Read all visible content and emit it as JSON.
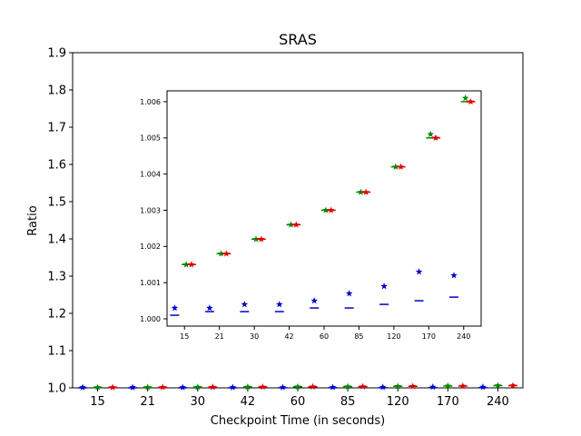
{
  "chart_data": [
    {
      "type": "box",
      "role": "main",
      "title": "SRAS",
      "xlabel": "Checkpoint Time (in seconds)",
      "ylabel": "Ratio",
      "categories": [
        "15",
        "21",
        "30",
        "42",
        "60",
        "85",
        "120",
        "170",
        "240"
      ],
      "ylim": [
        1.0,
        1.9
      ],
      "yticks": [
        "1.0",
        "1.1",
        "1.2",
        "1.3",
        "1.4",
        "1.5",
        "1.6",
        "1.7",
        "1.8",
        "1.9"
      ],
      "series": [
        {
          "color": "#0000cc",
          "medians": [
            1.0001,
            1.0001,
            1.0002,
            1.0002,
            1.0002,
            1.0003,
            1.0003,
            1.0004,
            1.0005
          ],
          "outliers": [
            1.0012,
            1.0012,
            1.0013,
            1.0013,
            1.0014,
            1.0016,
            1.0018,
            1.0023,
            1.0021
          ]
        },
        {
          "color": "#008800",
          "medians": [
            1.0014,
            1.0017,
            1.0021,
            1.0025,
            1.003,
            1.0035,
            1.0042,
            1.005,
            1.006
          ],
          "outliers": [
            1.0014,
            1.0017,
            1.0021,
            1.0025,
            1.003,
            1.0035,
            1.0042,
            1.0051,
            1.0061
          ]
        },
        {
          "color": "#dd0000",
          "medians": [
            1.0014,
            1.0017,
            1.0021,
            1.0025,
            1.003,
            1.0035,
            1.0042,
            1.005,
            1.006
          ],
          "outliers": [
            1.0014,
            1.0017,
            1.0021,
            1.0025,
            1.003,
            1.0035,
            1.0042,
            1.005,
            1.006
          ]
        }
      ]
    },
    {
      "type": "box",
      "role": "inset",
      "categories": [
        "15",
        "21",
        "30",
        "42",
        "60",
        "85",
        "120",
        "170",
        "240"
      ],
      "ylim": [
        0.9998,
        1.0063
      ],
      "yticks": [
        "1.000",
        "1.001",
        "1.002",
        "1.003",
        "1.004",
        "1.005",
        "1.006"
      ],
      "series": [
        {
          "color": "#0000cc",
          "medians": [
            1.0001,
            1.0002,
            1.0002,
            1.0002,
            1.0003,
            1.0003,
            1.0004,
            1.0005,
            1.0006
          ],
          "outliers": [
            1.0003,
            1.0003,
            1.0004,
            1.0004,
            1.0005,
            1.0007,
            1.0009,
            1.0013,
            1.0012
          ]
        },
        {
          "color": "#008800",
          "medians": [
            1.0015,
            1.0018,
            1.0022,
            1.0026,
            1.003,
            1.0035,
            1.0042,
            1.005,
            1.006
          ],
          "outliers": [
            1.0015,
            1.0018,
            1.0022,
            1.0026,
            1.003,
            1.0035,
            1.0042,
            1.0051,
            1.0061
          ]
        },
        {
          "color": "#dd0000",
          "medians": [
            1.0015,
            1.0018,
            1.0022,
            1.0026,
            1.003,
            1.0035,
            1.0042,
            1.005,
            1.006
          ],
          "outliers": [
            1.0015,
            1.0018,
            1.0022,
            1.0026,
            1.003,
            1.0035,
            1.0042,
            1.005,
            1.006
          ]
        }
      ]
    }
  ]
}
